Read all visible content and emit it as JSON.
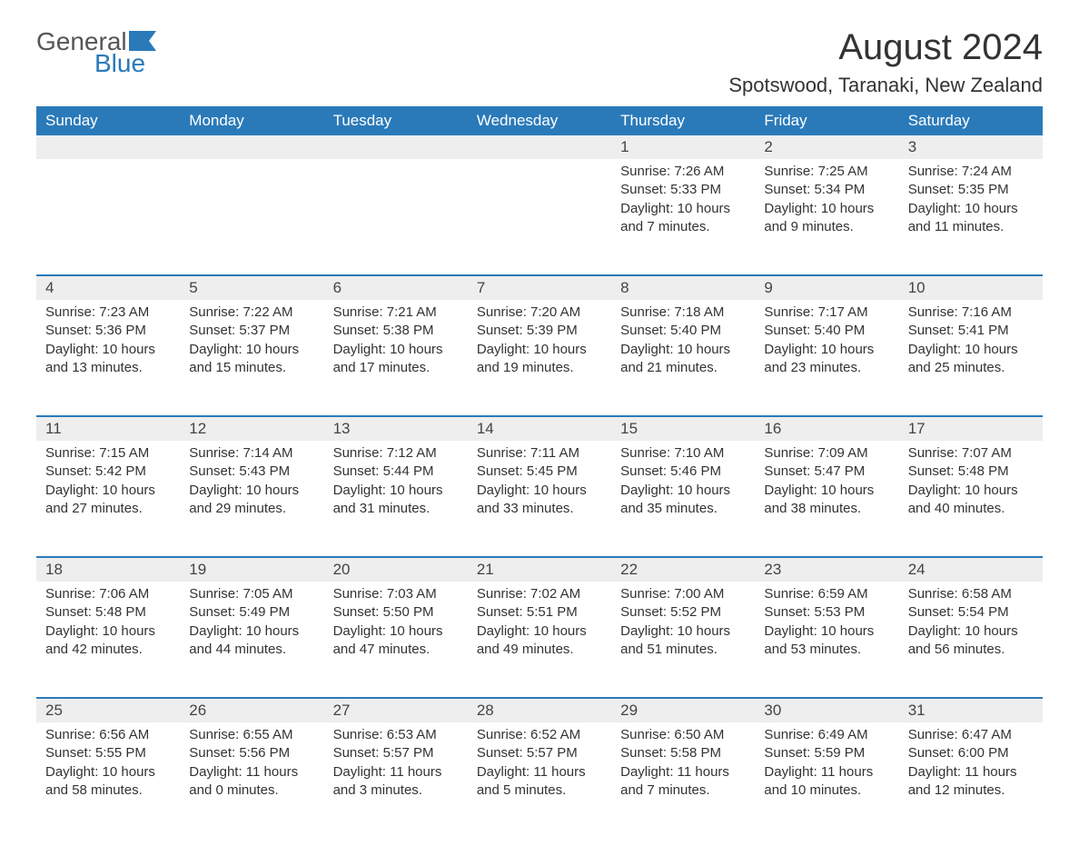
{
  "brand": {
    "general": "General",
    "blue": "Blue",
    "icon_color": "#2a7ab9"
  },
  "title": "August 2024",
  "location": "Spotswood, Taranaki, New Zealand",
  "weekdays": [
    "Sunday",
    "Monday",
    "Tuesday",
    "Wednesday",
    "Thursday",
    "Friday",
    "Saturday"
  ],
  "colors": {
    "header_bg": "#2a7ab9",
    "row_bg": "#eeeeee",
    "text": "#333333"
  },
  "weeks": [
    [
      null,
      null,
      null,
      null,
      {
        "n": "1",
        "sr": "Sunrise: 7:26 AM",
        "ss": "Sunset: 5:33 PM",
        "dl": "Daylight: 10 hours and 7 minutes."
      },
      {
        "n": "2",
        "sr": "Sunrise: 7:25 AM",
        "ss": "Sunset: 5:34 PM",
        "dl": "Daylight: 10 hours and 9 minutes."
      },
      {
        "n": "3",
        "sr": "Sunrise: 7:24 AM",
        "ss": "Sunset: 5:35 PM",
        "dl": "Daylight: 10 hours and 11 minutes."
      }
    ],
    [
      {
        "n": "4",
        "sr": "Sunrise: 7:23 AM",
        "ss": "Sunset: 5:36 PM",
        "dl": "Daylight: 10 hours and 13 minutes."
      },
      {
        "n": "5",
        "sr": "Sunrise: 7:22 AM",
        "ss": "Sunset: 5:37 PM",
        "dl": "Daylight: 10 hours and 15 minutes."
      },
      {
        "n": "6",
        "sr": "Sunrise: 7:21 AM",
        "ss": "Sunset: 5:38 PM",
        "dl": "Daylight: 10 hours and 17 minutes."
      },
      {
        "n": "7",
        "sr": "Sunrise: 7:20 AM",
        "ss": "Sunset: 5:39 PM",
        "dl": "Daylight: 10 hours and 19 minutes."
      },
      {
        "n": "8",
        "sr": "Sunrise: 7:18 AM",
        "ss": "Sunset: 5:40 PM",
        "dl": "Daylight: 10 hours and 21 minutes."
      },
      {
        "n": "9",
        "sr": "Sunrise: 7:17 AM",
        "ss": "Sunset: 5:40 PM",
        "dl": "Daylight: 10 hours and 23 minutes."
      },
      {
        "n": "10",
        "sr": "Sunrise: 7:16 AM",
        "ss": "Sunset: 5:41 PM",
        "dl": "Daylight: 10 hours and 25 minutes."
      }
    ],
    [
      {
        "n": "11",
        "sr": "Sunrise: 7:15 AM",
        "ss": "Sunset: 5:42 PM",
        "dl": "Daylight: 10 hours and 27 minutes."
      },
      {
        "n": "12",
        "sr": "Sunrise: 7:14 AM",
        "ss": "Sunset: 5:43 PM",
        "dl": "Daylight: 10 hours and 29 minutes."
      },
      {
        "n": "13",
        "sr": "Sunrise: 7:12 AM",
        "ss": "Sunset: 5:44 PM",
        "dl": "Daylight: 10 hours and 31 minutes."
      },
      {
        "n": "14",
        "sr": "Sunrise: 7:11 AM",
        "ss": "Sunset: 5:45 PM",
        "dl": "Daylight: 10 hours and 33 minutes."
      },
      {
        "n": "15",
        "sr": "Sunrise: 7:10 AM",
        "ss": "Sunset: 5:46 PM",
        "dl": "Daylight: 10 hours and 35 minutes."
      },
      {
        "n": "16",
        "sr": "Sunrise: 7:09 AM",
        "ss": "Sunset: 5:47 PM",
        "dl": "Daylight: 10 hours and 38 minutes."
      },
      {
        "n": "17",
        "sr": "Sunrise: 7:07 AM",
        "ss": "Sunset: 5:48 PM",
        "dl": "Daylight: 10 hours and 40 minutes."
      }
    ],
    [
      {
        "n": "18",
        "sr": "Sunrise: 7:06 AM",
        "ss": "Sunset: 5:48 PM",
        "dl": "Daylight: 10 hours and 42 minutes."
      },
      {
        "n": "19",
        "sr": "Sunrise: 7:05 AM",
        "ss": "Sunset: 5:49 PM",
        "dl": "Daylight: 10 hours and 44 minutes."
      },
      {
        "n": "20",
        "sr": "Sunrise: 7:03 AM",
        "ss": "Sunset: 5:50 PM",
        "dl": "Daylight: 10 hours and 47 minutes."
      },
      {
        "n": "21",
        "sr": "Sunrise: 7:02 AM",
        "ss": "Sunset: 5:51 PM",
        "dl": "Daylight: 10 hours and 49 minutes."
      },
      {
        "n": "22",
        "sr": "Sunrise: 7:00 AM",
        "ss": "Sunset: 5:52 PM",
        "dl": "Daylight: 10 hours and 51 minutes."
      },
      {
        "n": "23",
        "sr": "Sunrise: 6:59 AM",
        "ss": "Sunset: 5:53 PM",
        "dl": "Daylight: 10 hours and 53 minutes."
      },
      {
        "n": "24",
        "sr": "Sunrise: 6:58 AM",
        "ss": "Sunset: 5:54 PM",
        "dl": "Daylight: 10 hours and 56 minutes."
      }
    ],
    [
      {
        "n": "25",
        "sr": "Sunrise: 6:56 AM",
        "ss": "Sunset: 5:55 PM",
        "dl": "Daylight: 10 hours and 58 minutes."
      },
      {
        "n": "26",
        "sr": "Sunrise: 6:55 AM",
        "ss": "Sunset: 5:56 PM",
        "dl": "Daylight: 11 hours and 0 minutes."
      },
      {
        "n": "27",
        "sr": "Sunrise: 6:53 AM",
        "ss": "Sunset: 5:57 PM",
        "dl": "Daylight: 11 hours and 3 minutes."
      },
      {
        "n": "28",
        "sr": "Sunrise: 6:52 AM",
        "ss": "Sunset: 5:57 PM",
        "dl": "Daylight: 11 hours and 5 minutes."
      },
      {
        "n": "29",
        "sr": "Sunrise: 6:50 AM",
        "ss": "Sunset: 5:58 PM",
        "dl": "Daylight: 11 hours and 7 minutes."
      },
      {
        "n": "30",
        "sr": "Sunrise: 6:49 AM",
        "ss": "Sunset: 5:59 PM",
        "dl": "Daylight: 11 hours and 10 minutes."
      },
      {
        "n": "31",
        "sr": "Sunrise: 6:47 AM",
        "ss": "Sunset: 6:00 PM",
        "dl": "Daylight: 11 hours and 12 minutes."
      }
    ]
  ]
}
